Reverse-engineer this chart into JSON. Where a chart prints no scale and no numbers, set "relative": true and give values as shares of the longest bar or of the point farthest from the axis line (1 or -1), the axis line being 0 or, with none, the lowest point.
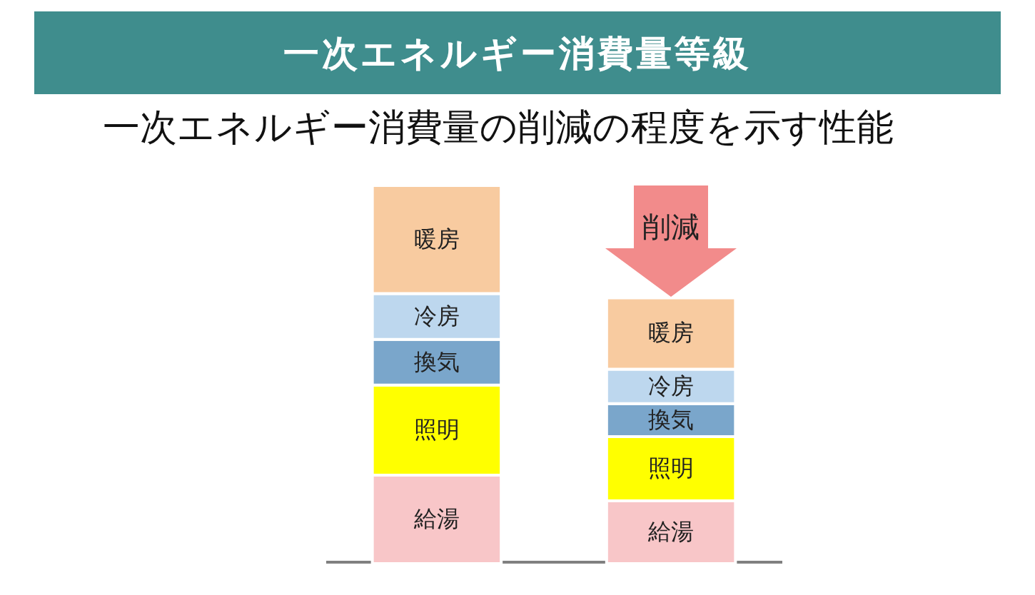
{
  "chart_data": {
    "type": "bar",
    "title": "一次エネルギー消費量等級",
    "subtitle": "一次エネルギー消費量の削減の程度を示す性能",
    "categories": [
      null,
      null
    ],
    "stacked": true,
    "relative": true,
    "annotations": [
      "削減"
    ],
    "series": [
      {
        "name": "給湯",
        "color": "#f8c6c8",
        "values": [
          0.234,
          0.166
        ]
      },
      {
        "name": "照明",
        "color": "#ffff00",
        "values": [
          0.238,
          0.17
        ]
      },
      {
        "name": "換気",
        "color": "#7aa6cb",
        "values": [
          0.121,
          0.087
        ]
      },
      {
        "name": "冷房",
        "color": "#bdd7ee",
        "values": [
          0.121,
          0.091
        ]
      },
      {
        "name": "暖房",
        "color": "#f8cba0",
        "values": [
          0.286,
          0.189
        ]
      }
    ]
  }
}
